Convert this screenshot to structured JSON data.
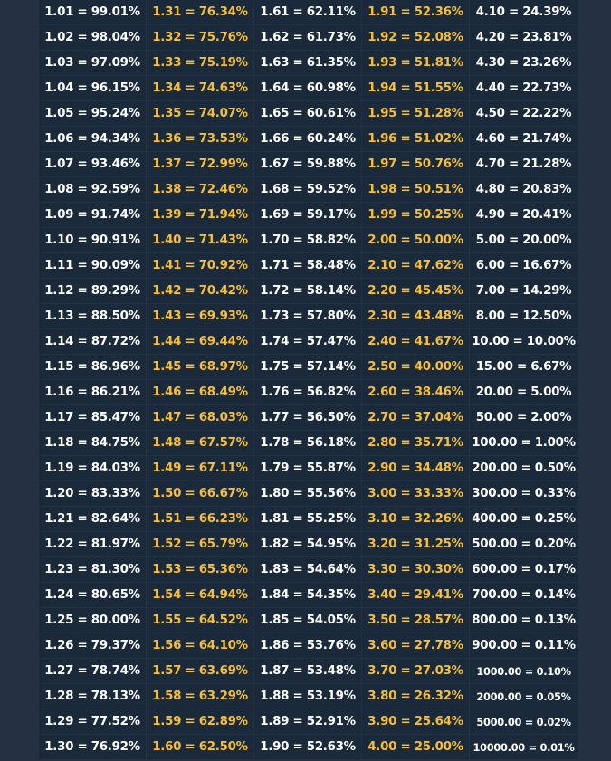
{
  "columns": [
    [
      "1.01 = 99.01%",
      "1.02 = 98.04%",
      "1.03 = 97.09%",
      "1.04 = 96.15%",
      "1.05 = 95.24%",
      "1.06 = 94.34%",
      "1.07 = 93.46%",
      "1.08 = 92.59%",
      "1.09 = 91.74%",
      "1.10 = 90.91%",
      "1.11 = 90.09%",
      "1.12 = 89.29%",
      "1.13 = 88.50%",
      "1.14 = 87.72%",
      "1.15 = 86.96%",
      "1.16 = 86.21%",
      "1.17 = 85.47%",
      "1.18 = 84.75%",
      "1.19 = 84.03%",
      "1.20 = 83.33%",
      "1.21 = 82.64%",
      "1.22 = 81.97%",
      "1.23 = 81.30%",
      "1.24 = 80.65%",
      "1.25 = 80.00%",
      "1.26 = 79.37%",
      "1.27 = 78.74%",
      "1.28 = 78.13%",
      "1.29 = 77.52%",
      "1.30 = 76.92%"
    ],
    [
      "1.31 = 76.34%",
      "1.32 = 75.76%",
      "1.33 = 75.19%",
      "1.34 = 74.63%",
      "1.35 = 74.07%",
      "1.36 = 73.53%",
      "1.37 = 72.99%",
      "1.38 = 72.46%",
      "1.39 = 71.94%",
      "1.40 = 71.43%",
      "1.41 = 70.92%",
      "1.42 = 70.42%",
      "1.43 = 69.93%",
      "1.44 = 69.44%",
      "1.45 = 68.97%",
      "1.46 = 68.49%",
      "1.47 = 68.03%",
      "1.48 = 67.57%",
      "1.49 = 67.11%",
      "1.50 = 66.67%",
      "1.51 = 66.23%",
      "1.52 = 65.79%",
      "1.53 = 65.36%",
      "1.54 = 64.94%",
      "1.55 = 64.52%",
      "1.56 = 64.10%",
      "1.57 = 63.69%",
      "1.58 = 63.29%",
      "1.59 = 62.89%",
      "1.60 = 62.50%"
    ],
    [
      "1.61 = 62.11%",
      "1.62 = 61.73%",
      "1.63 = 61.35%",
      "1.64 = 60.98%",
      "1.65 = 60.61%",
      "1.66 = 60.24%",
      "1.67 = 59.88%",
      "1.68 = 59.52%",
      "1.69 = 59.17%",
      "1.70 = 58.82%",
      "1.71 = 58.48%",
      "1.72 = 58.14%",
      "1.73 = 57.80%",
      "1.74 = 57.47%",
      "1.75 = 57.14%",
      "1.76 = 56.82%",
      "1.77 = 56.50%",
      "1.78 = 56.18%",
      "1.79 = 55.87%",
      "1.80 = 55.56%",
      "1.81 = 55.25%",
      "1.82 = 54.95%",
      "1.83 = 54.64%",
      "1.84 = 54.35%",
      "1.85 = 54.05%",
      "1.86 = 53.76%",
      "1.87 = 53.48%",
      "1.88 = 53.19%",
      "1.89 = 52.91%",
      "1.90 = 52.63%"
    ],
    [
      "1.91 = 52.36%",
      "1.92 = 52.08%",
      "1.93 = 51.81%",
      "1.94 = 51.55%",
      "1.95 = 51.28%",
      "1.96 = 51.02%",
      "1.97 = 50.76%",
      "1.98 = 50.51%",
      "1.99 = 50.25%",
      "2.00 = 50.00%",
      "2.10 = 47.62%",
      "2.20 = 45.45%",
      "2.30 = 43.48%",
      "2.40 = 41.67%",
      "2.50 = 40.00%",
      "2.60 = 38.46%",
      "2.70 = 37.04%",
      "2.80 = 35.71%",
      "2.90 = 34.48%",
      "3.00 = 33.33%",
      "3.10 = 32.26%",
      "3.20 = 31.25%",
      "3.30 = 30.30%",
      "3.40 = 29.41%",
      "3.50 = 28.57%",
      "3.60 = 27.78%",
      "3.70 = 27.03%",
      "3.80 = 26.32%",
      "3.90 = 25.64%",
      "4.00 = 25.00%"
    ],
    [
      "4.10 = 24.39%",
      "4.20 = 23.81%",
      "4.30 = 23.26%",
      "4.40 = 22.73%",
      "4.50 = 22.22%",
      "4.60 = 21.74%",
      "4.70 = 21.28%",
      "4.80 = 20.83%",
      "4.90 = 20.41%",
      "5.00 = 20.00%",
      "6.00 = 16.67%",
      "7.00 = 14.29%",
      "8.00 = 12.50%",
      "10.00 = 10.00%",
      "15.00 = 6.67%",
      "20.00 = 5.00%",
      "50.00 = 2.00%",
      "100.00 = 1.00%",
      "200.00 = 0.50%",
      "300.00 = 0.33%",
      "400.00 = 0.25%",
      "500.00 = 0.20%",
      "600.00 = 0.17%",
      "700.00 = 0.14%",
      "800.00 = 0.13%",
      "900.00 = 0.11%",
      "1000.00 = 0.10%",
      "2000.00 = 0.05%",
      "5000.00 = 0.02%",
      "10000.00 = 0.01%"
    ]
  ],
  "colors": {
    "background": "#233142",
    "cell": "#1a2a3b",
    "text_white": "#ffffff",
    "text_gold": "#f6be39"
  }
}
